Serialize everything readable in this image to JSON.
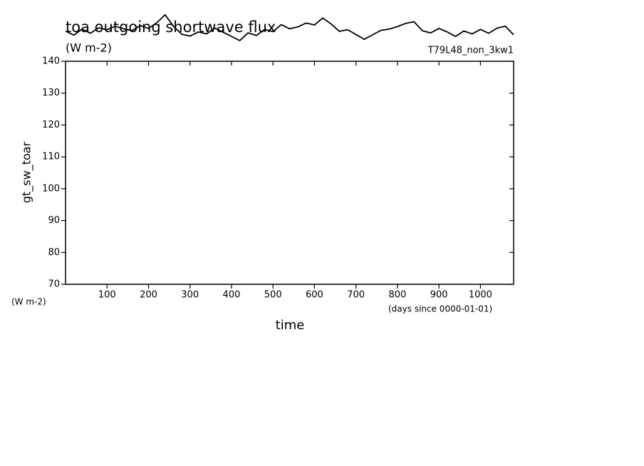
{
  "chart_data": {
    "type": "line",
    "title": "toa outgoing shortwave flux",
    "subtitle": "(W m-2)",
    "run_label": "T79L48_non_3kw1",
    "y_label": "gt_sw_toar",
    "y_units": "(W m-2)",
    "x_label": "time",
    "x_units": "(days since 0000-01-01)",
    "xlim": [
      0,
      1080
    ],
    "ylim": [
      70,
      140
    ],
    "xticks": [
      100,
      200,
      300,
      400,
      500,
      600,
      700,
      800,
      900,
      1000
    ],
    "yticks": [
      70,
      80,
      90,
      100,
      110,
      120,
      130,
      140
    ],
    "x": [
      0,
      20,
      40,
      60,
      80,
      100,
      120,
      140,
      160,
      180,
      200,
      220,
      240,
      260,
      280,
      300,
      320,
      340,
      360,
      380,
      400,
      420,
      440,
      460,
      480,
      500,
      520,
      540,
      560,
      580,
      600,
      620,
      640,
      660,
      680,
      700,
      720,
      740,
      760,
      780,
      800,
      820,
      840,
      860,
      880,
      900,
      920,
      940,
      960,
      980,
      1000,
      1020,
      1040,
      1060,
      1080
    ],
    "series": [
      {
        "color": "#000000",
        "values": [
          149.5,
          148.2,
          150.1,
          148.8,
          150.5,
          149.9,
          151.0,
          150.2,
          149.6,
          151.2,
          150.3,
          152.1,
          154.6,
          151.0,
          148.5,
          147.9,
          149.2,
          148.6,
          150.4,
          149.1,
          147.8,
          146.5,
          148.9,
          148.1,
          150.0,
          149.3,
          151.5,
          150.2,
          150.8,
          152.0,
          151.4,
          153.6,
          151.7,
          149.4,
          149.9,
          148.4,
          146.9,
          148.3,
          149.7,
          150.1,
          150.9,
          151.9,
          152.4,
          149.6,
          148.9,
          150.3,
          149.2,
          147.8,
          149.5,
          148.6,
          150.0,
          148.8,
          150.4,
          151.0,
          148.3
        ]
      }
    ]
  }
}
